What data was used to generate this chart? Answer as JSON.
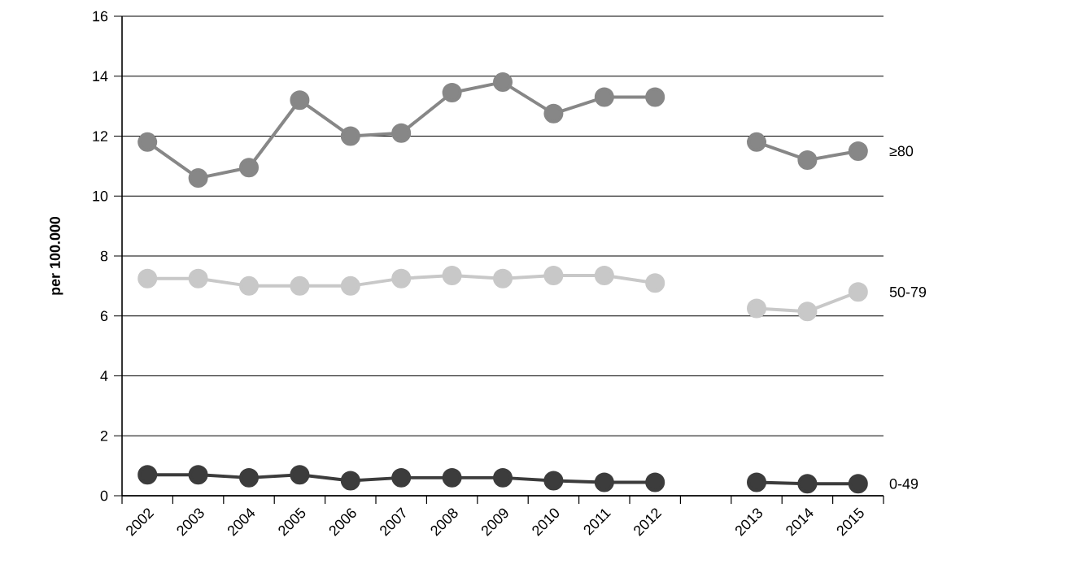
{
  "chart_data": {
    "type": "line",
    "ylabel": "per 100.000",
    "categories": [
      "2002",
      "2003",
      "2004",
      "2005",
      "2006",
      "2007",
      "2008",
      "2009",
      "2010",
      "2011",
      "2012",
      null,
      "2013",
      "2014",
      "2015"
    ],
    "series": [
      {
        "name": "≥80",
        "color": "#878787",
        "values": [
          11.8,
          10.6,
          10.95,
          13.2,
          12.0,
          12.1,
          13.45,
          13.8,
          12.75,
          13.3,
          13.3,
          null,
          11.8,
          11.2,
          11.5
        ]
      },
      {
        "name": "50-79",
        "color": "#c8c8c8",
        "values": [
          7.25,
          7.25,
          7.0,
          7.0,
          7.0,
          7.25,
          7.35,
          7.25,
          7.35,
          7.35,
          7.1,
          null,
          6.25,
          6.15,
          6.8
        ]
      },
      {
        "name": "0-49",
        "color": "#3c3c3c",
        "values": [
          0.7,
          0.7,
          0.6,
          0.7,
          0.5,
          0.6,
          0.6,
          0.6,
          0.5,
          0.45,
          0.45,
          null,
          0.45,
          0.4,
          0.4
        ]
      }
    ],
    "ylim": [
      0,
      16
    ],
    "yticks": [
      0,
      2,
      4,
      6,
      8,
      10,
      12,
      14,
      16
    ],
    "grid": "y",
    "marker": "circle",
    "line_style": "solid"
  }
}
